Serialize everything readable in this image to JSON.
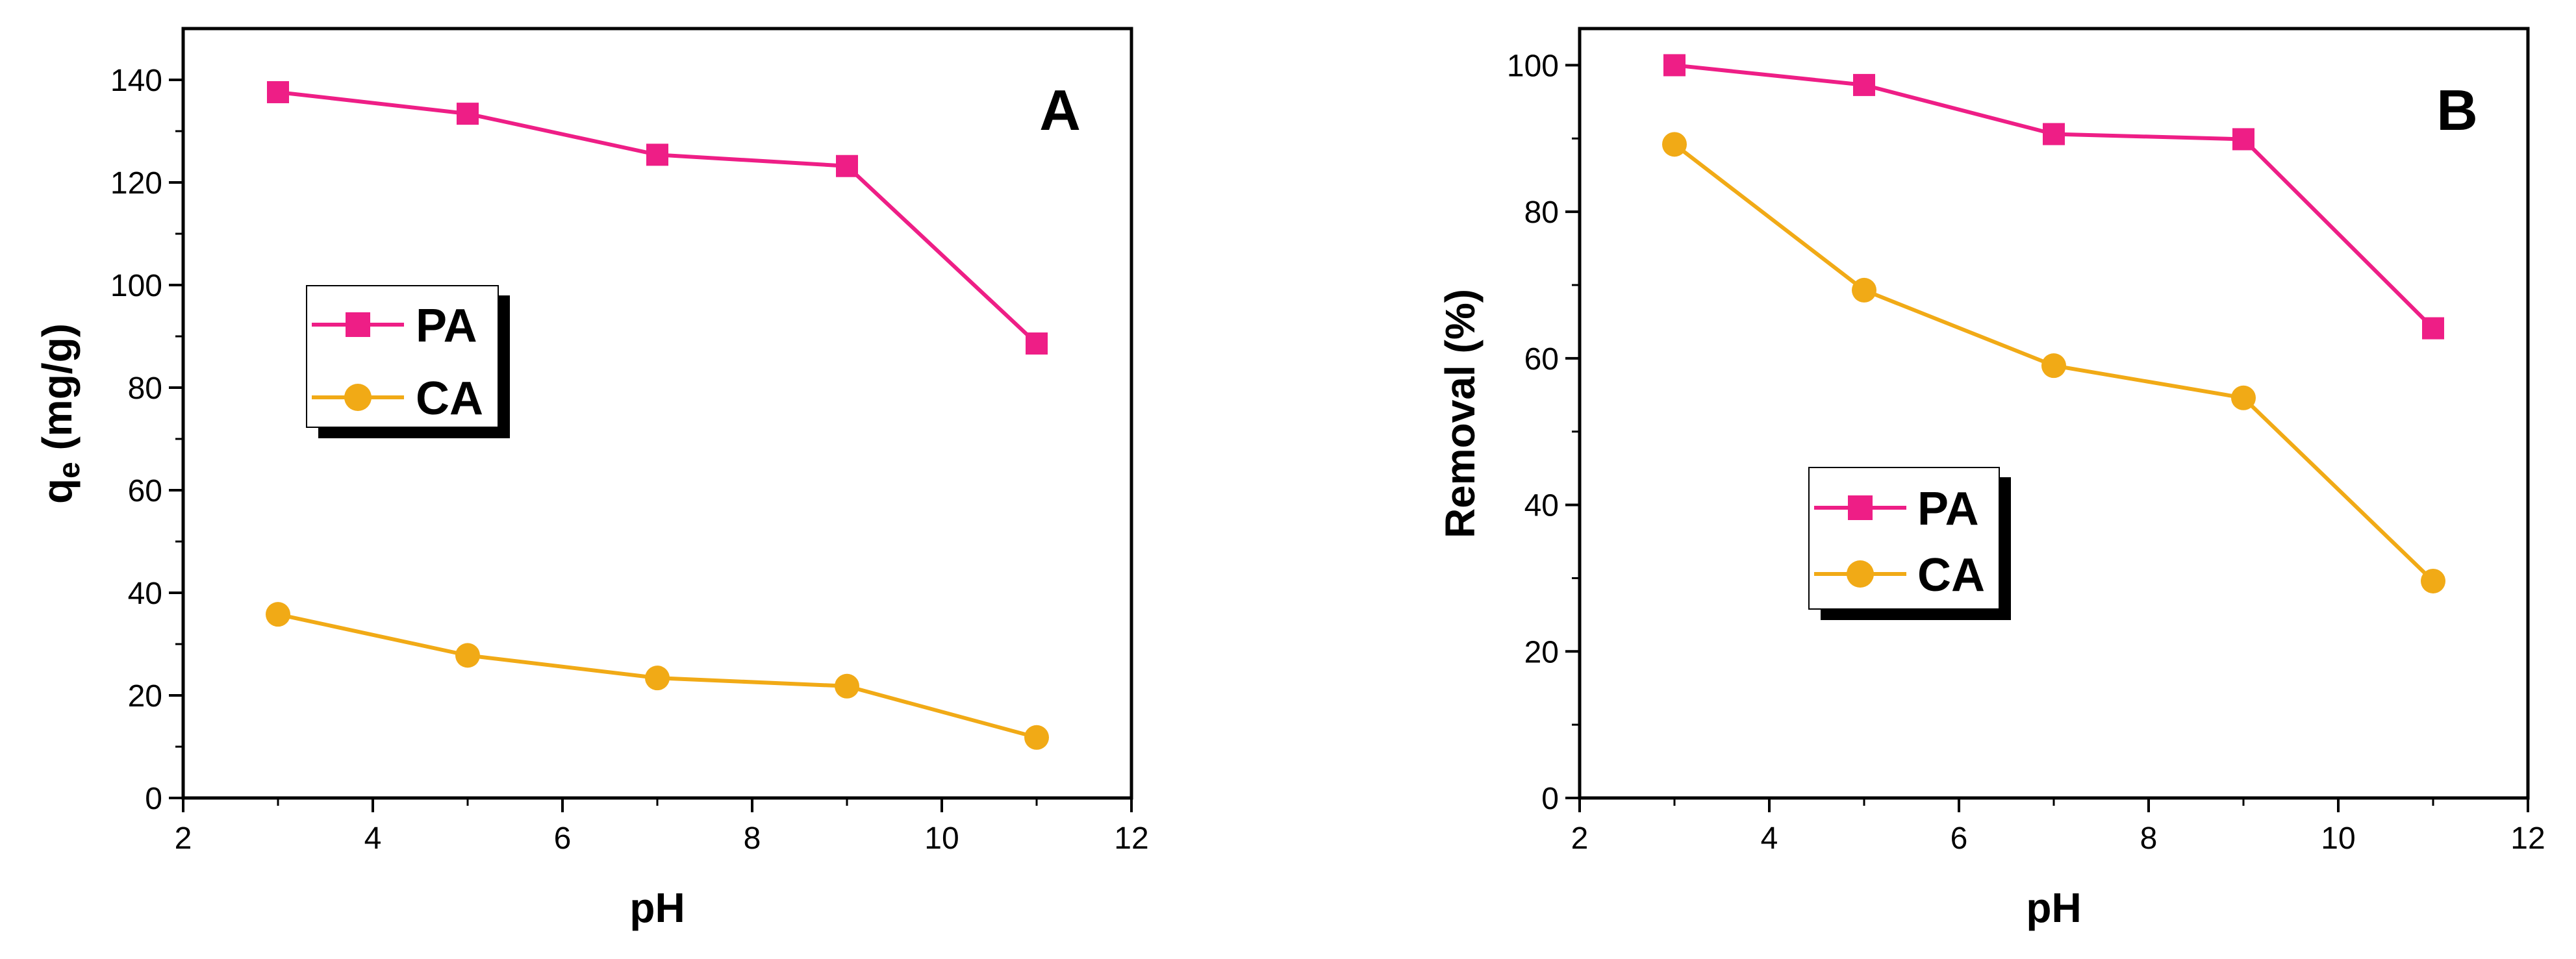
{
  "chart_data": [
    {
      "type": "line",
      "panel_label": "A",
      "xlabel": "pH",
      "ylabel_main": "q",
      "ylabel_sub": "e",
      "ylabel_rest": " (mg/g)",
      "xlim": [
        2,
        12
      ],
      "ylim": [
        0,
        150
      ],
      "xticks": [
        2,
        4,
        6,
        8,
        10,
        12
      ],
      "yticks": [
        0,
        20,
        40,
        60,
        80,
        100,
        120,
        140
      ],
      "x": [
        3,
        5,
        7,
        9,
        11
      ],
      "series": [
        {
          "name": "PA",
          "color": "#ee1e86",
          "marker": "square",
          "values": [
            137.6,
            133.4,
            125.4,
            123.2,
            88.6
          ]
        },
        {
          "name": "CA",
          "color": "#f1aa16",
          "marker": "circle",
          "values": [
            35.8,
            27.8,
            23.4,
            21.8,
            11.8
          ]
        }
      ],
      "legend": [
        "PA",
        "CA"
      ],
      "legend_position": "center-left",
      "grid": false
    },
    {
      "type": "line",
      "panel_label": "B",
      "xlabel": "pH",
      "ylabel": "Removal (%)",
      "xlim": [
        2,
        12
      ],
      "ylim": [
        0,
        105
      ],
      "xticks": [
        2,
        4,
        6,
        8,
        10,
        12
      ],
      "yticks": [
        0,
        20,
        40,
        60,
        80,
        100
      ],
      "x": [
        3,
        5,
        7,
        9,
        11
      ],
      "series": [
        {
          "name": "PA",
          "color": "#ee1e86",
          "marker": "square",
          "values": [
            100.0,
            97.3,
            90.6,
            89.9,
            64.1
          ]
        },
        {
          "name": "CA",
          "color": "#f1aa16",
          "marker": "circle",
          "values": [
            89.2,
            69.3,
            59.0,
            54.6,
            29.6
          ]
        }
      ],
      "legend": [
        "PA",
        "CA"
      ],
      "legend_position": "center-left",
      "grid": false
    }
  ]
}
